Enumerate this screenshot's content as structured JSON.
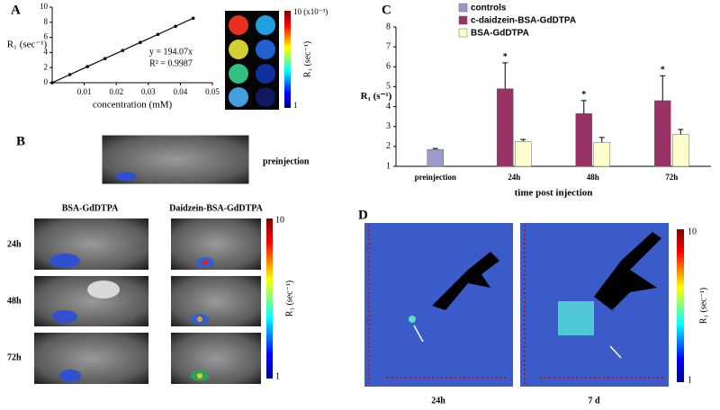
{
  "panels": {
    "a": "A",
    "b": "B",
    "c": "C",
    "d": "D"
  },
  "colorbar_a": {
    "max": "10 (x10⁻³)",
    "min": "1",
    "label": "R₁ (sec⁻¹)"
  },
  "panel_b": {
    "preinjection": "preinjection",
    "col_left": "BSA-GdDTPA",
    "col_right": "Daidzein-BSA-GdDTPA",
    "rows": [
      "24h",
      "48h",
      "72h"
    ],
    "cbar_max": "10",
    "cbar_min": "1",
    "cbar_label": "R₁ (sec⁻¹)"
  },
  "panel_d": {
    "left": "24h",
    "right": "7 d",
    "cbar_max": "10",
    "cbar_min": "1",
    "cbar_label": "R₁ (sec⁻¹)"
  },
  "chart_data": [
    {
      "type": "line",
      "x_label": "concentration (mM)",
      "y_label": "R₁ (sec⁻¹)",
      "annotations": [
        "y = 194.07x",
        "R² = 0.9987"
      ],
      "x": [
        0,
        0.0055,
        0.011,
        0.0165,
        0.022,
        0.0275,
        0.033,
        0.0385,
        0.044
      ],
      "values": [
        0,
        1.07,
        2.13,
        3.2,
        4.27,
        5.34,
        6.4,
        7.47,
        8.54
      ],
      "color": "#000000",
      "xlim": [
        0,
        0.05
      ],
      "ylim": [
        0,
        10
      ],
      "xticks": [
        0.01,
        0.02,
        0.03,
        0.04,
        0.05
      ],
      "yticks": [
        0,
        2,
        4,
        6,
        8,
        10
      ]
    },
    {
      "type": "bar",
      "x_label": "time post injection",
      "y_label": "R₁ (s⁻¹)",
      "categories": [
        "preinjection",
        "24h",
        "48h",
        "72h"
      ],
      "series": [
        {
          "name": "controls",
          "color": "#9999cc",
          "values": [
            1.85,
            null,
            null,
            null
          ],
          "errors": [
            0.05,
            null,
            null,
            null
          ]
        },
        {
          "name": "c-daidzein-BSA-GdDTPA",
          "color": "#993366",
          "values": [
            null,
            4.9,
            3.65,
            4.3
          ],
          "errors": [
            null,
            1.3,
            0.65,
            1.25
          ]
        },
        {
          "name": "BSA-GdDTPA",
          "color": "#ffffcc",
          "values": [
            null,
            2.25,
            2.2,
            2.6
          ],
          "errors": [
            null,
            0.1,
            0.25,
            0.25
          ]
        }
      ],
      "annotations": [
        "*",
        "*",
        "*"
      ],
      "ylim": [
        1,
        8
      ],
      "yticks": [
        1,
        2,
        3,
        4,
        5,
        6,
        7,
        8
      ]
    }
  ]
}
